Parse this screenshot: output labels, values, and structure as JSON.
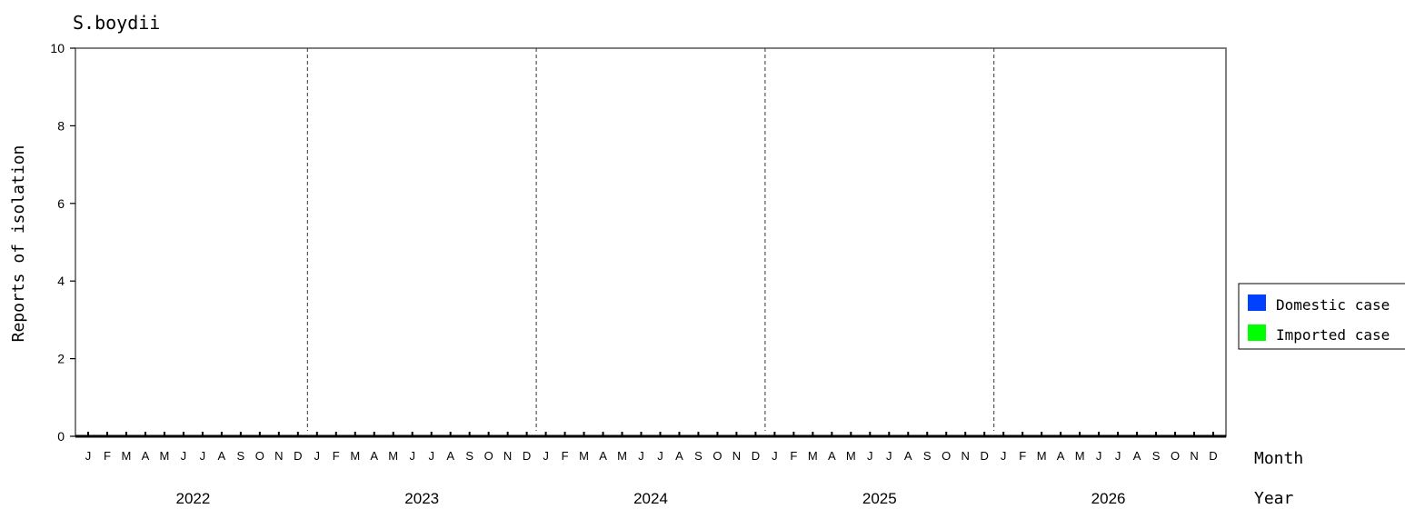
{
  "chart_data": {
    "type": "bar",
    "title": "S.boydii",
    "ylabel": "Reports of isolation",
    "xlabel_month": "Month",
    "xlabel_year": "Year",
    "ylim": [
      0,
      10
    ],
    "yticks": [
      0,
      2,
      4,
      6,
      8,
      10
    ],
    "years": [
      "2022",
      "2023",
      "2024",
      "2025",
      "2026"
    ],
    "months": [
      "J",
      "F",
      "M",
      "A",
      "M",
      "J",
      "J",
      "A",
      "S",
      "O",
      "N",
      "D"
    ],
    "series": [
      {
        "name": "Domestic case",
        "color": "#0040ff",
        "values": [
          0,
          0,
          0,
          0,
          0,
          0,
          0,
          0,
          0,
          0,
          0,
          0,
          0,
          0,
          0,
          0,
          0,
          0,
          0,
          0,
          0,
          0,
          0,
          0,
          0,
          0,
          0,
          0,
          0,
          0,
          0,
          0,
          0,
          0,
          0,
          0,
          0,
          0,
          0,
          0,
          0,
          0,
          0,
          0,
          0,
          0,
          0,
          0,
          0,
          0,
          0,
          0,
          0,
          0,
          0,
          0,
          0,
          0,
          0,
          0
        ]
      },
      {
        "name": "Imported case",
        "color": "#00ff00",
        "values": [
          0,
          0,
          0,
          0,
          0,
          0,
          0,
          0,
          0,
          0,
          0,
          0,
          0,
          0,
          0,
          0,
          0,
          0,
          0,
          0,
          0,
          0,
          0,
          0,
          0,
          0,
          0,
          0,
          0,
          0,
          0,
          0,
          0,
          0,
          0,
          0,
          0,
          0,
          0,
          0,
          0,
          0,
          0,
          0,
          0,
          0,
          0,
          0,
          0,
          0,
          0,
          0,
          0,
          0,
          0,
          0,
          0,
          0,
          0,
          0
        ]
      }
    ],
    "stacked": true,
    "year_separators": "dashed",
    "legend_position": "right"
  }
}
